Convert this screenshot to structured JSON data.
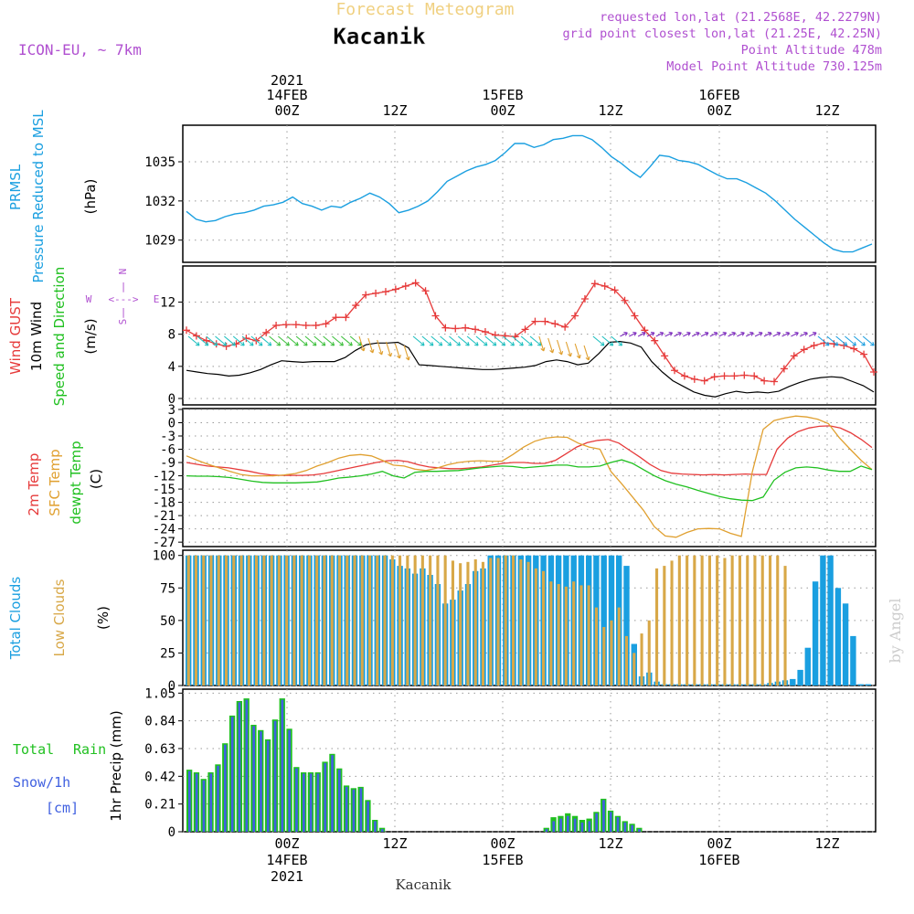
{
  "header": {
    "title": "Forecast Meteogram",
    "location": "Kacanik",
    "model": "ICON-EU, ~ 7km",
    "requested": "requested lon,lat (21.2568E, 42.2279N)",
    "gridpoint": "grid point closest lon,lat (21.25E, 42.25N)",
    "point_altitude": "Point Altitude 478m",
    "model_altitude": "Model Point Altitude 730.125m",
    "watermark": "by Angel",
    "footer_location": "Kacanik"
  },
  "time_axis": {
    "top_labels": [
      {
        "line1": "2021",
        "line2": "14FEB",
        "line3": "00Z"
      },
      {
        "line3": "12Z"
      },
      {
        "line2": "15FEB",
        "line3": "00Z"
      },
      {
        "line3": "12Z"
      },
      {
        "line2": "16FEB",
        "line3": "00Z"
      },
      {
        "line3": "12Z"
      }
    ],
    "bottom_labels": [
      {
        "line1": "00Z",
        "line2": "14FEB",
        "line3": "2021"
      },
      {
        "line1": "12Z"
      },
      {
        "line1": "00Z",
        "line2": "15FEB"
      },
      {
        "line1": "12Z"
      },
      {
        "line1": "00Z",
        "line2": "16FEB"
      },
      {
        "line1": "12Z"
      }
    ]
  },
  "panel_labels": {
    "pressure": {
      "l1": "PRMSL",
      "l2": "Pressure Reduced to MSL",
      "unit": "(hPa)"
    },
    "wind": {
      "l1": "Wind GUST",
      "l2": "10m Wind",
      "l3": "Speed and Direction",
      "unit": "(m/s)",
      "compass_n": "N",
      "compass_s": "S",
      "compass_w": "W",
      "compass_e": "E",
      "compass_h": "<--->",
      "compass_v": "|"
    },
    "temp": {
      "l1": "2m Temp",
      "l2": "SFC Temp",
      "l3": "dewpt Temp",
      "unit": "(C)"
    },
    "cloud": {
      "l1": "Total Clouds",
      "l2": "Low Clouds",
      "unit": "(%)"
    },
    "precip": {
      "l1": "Total",
      "l1b": "Rain",
      "l2": "Snow/1h",
      "l3": "[cm]",
      "unit": "1hr Precip (mm)"
    }
  },
  "colors": {
    "pressure": "#1a9fe0",
    "gust": "#e63a3a",
    "wind": "#000000",
    "temp2m": "#e63a3a",
    "sfc": "#e0a030",
    "dewpt": "#20c020",
    "total_cloud": "#1a9fe0",
    "low_cloud": "#d8a848",
    "rain": "#20c020",
    "snow": "#4060e0",
    "label_purple": "#b050d0"
  },
  "chart_data": [
    {
      "type": "line",
      "title": "PRMSL Pressure Reduced to MSL",
      "ylabel": "(hPa)",
      "ylim": [
        1027.3,
        1037.8
      ],
      "yticks": [
        1029,
        1032,
        1035
      ],
      "series": [
        {
          "name": "PRMSL",
          "values": [
            1031.2,
            1030.6,
            1030.4,
            1030.5,
            1030.8,
            1031.0,
            1031.1,
            1031.3,
            1031.6,
            1031.7,
            1031.9,
            1032.3,
            1031.8,
            1031.6,
            1031.3,
            1031.6,
            1031.5,
            1031.9,
            1032.2,
            1032.6,
            1032.3,
            1031.8,
            1031.1,
            1031.3,
            1031.6,
            1032.0,
            1032.7,
            1033.5,
            1033.9,
            1034.3,
            1034.6,
            1034.8,
            1035.1,
            1035.7,
            1036.4,
            1036.4,
            1036.1,
            1036.3,
            1036.7,
            1036.8,
            1037.0,
            1037.0,
            1036.7,
            1036.1,
            1035.4,
            1034.9,
            1034.3,
            1033.8,
            1034.6,
            1035.5,
            1035.4,
            1035.1,
            1035.0,
            1034.8,
            1034.4,
            1034.0,
            1033.7,
            1033.7,
            1033.4,
            1033.0,
            1032.6,
            1032.0,
            1031.3,
            1030.6,
            1030.0,
            1029.4,
            1028.8,
            1028.3,
            1028.1,
            1028.1,
            1028.4,
            1028.7
          ]
        }
      ]
    },
    {
      "type": "line",
      "title": "Wind GUST / 10m Wind Speed and Direction",
      "ylabel": "(m/s)",
      "ylim": [
        -0.8,
        16.5
      ],
      "yticks": [
        0,
        4,
        8,
        12
      ],
      "series": [
        {
          "name": "Wind GUST",
          "values": [
            8.5,
            7.8,
            7.2,
            6.8,
            6.5,
            6.8,
            7.5,
            7.2,
            8.2,
            9.1,
            9.2,
            9.2,
            9.1,
            9.1,
            9.3,
            10.1,
            10.1,
            11.6,
            12.9,
            13.1,
            13.3,
            13.6,
            14.0,
            14.4,
            13.4,
            10.3,
            8.8,
            8.7,
            8.8,
            8.6,
            8.3,
            7.9,
            7.8,
            7.7,
            8.6,
            9.6,
            9.6,
            9.3,
            8.9,
            10.3,
            12.4,
            14.3,
            14.0,
            13.5,
            12.2,
            10.3,
            8.5,
            7.2,
            5.3,
            3.5,
            2.8,
            2.4,
            2.2,
            2.7,
            2.8,
            2.8,
            2.9,
            2.8,
            2.2,
            2.1,
            3.7,
            5.3,
            6.1,
            6.6,
            6.9,
            6.8,
            6.6,
            6.2,
            5.5,
            3.3
          ]
        },
        {
          "name": "10m Wind",
          "values": [
            3.5,
            3.3,
            3.1,
            3.0,
            2.8,
            2.9,
            3.2,
            3.6,
            4.2,
            4.7,
            4.6,
            4.5,
            4.6,
            4.6,
            4.6,
            5.1,
            6.0,
            6.7,
            6.9,
            6.9,
            7.0,
            6.3,
            4.2,
            4.1,
            4.0,
            3.9,
            3.8,
            3.7,
            3.6,
            3.6,
            3.7,
            3.8,
            3.9,
            4.1,
            4.6,
            4.8,
            4.6,
            4.2,
            4.4,
            5.6,
            7.0,
            7.1,
            6.9,
            6.4,
            4.6,
            3.3,
            2.2,
            1.5,
            0.8,
            0.4,
            0.2,
            0.6,
            0.9,
            0.7,
            0.8,
            0.7,
            0.9,
            1.5,
            2.0,
            2.4,
            2.6,
            2.7,
            2.6,
            2.1,
            1.6,
            0.8
          ]
        }
      ],
      "wind_direction_arrows": [
        {
          "count": 9,
          "direction": "SE",
          "color": "#20c0c0"
        },
        {
          "count": 10,
          "direction": "SE",
          "color": "#40c040"
        },
        {
          "count": 6,
          "direction": "S",
          "color": "#e0a030"
        },
        {
          "count": 14,
          "direction": "SE",
          "color": "#20c0c0"
        },
        {
          "count": 6,
          "direction": "S",
          "color": "#e0a030"
        },
        {
          "count": 3,
          "direction": "SE",
          "color": "#20c0c0"
        },
        {
          "count": 22,
          "direction": "NE",
          "color": "#8030c0"
        },
        {
          "count": 6,
          "direction": "SE",
          "color": "#20a0e0"
        }
      ]
    },
    {
      "type": "line",
      "title": "2m Temp / SFC Temp / dewpt Temp",
      "ylabel": "(C)",
      "ylim": [
        -28,
        3.2
      ],
      "yticks": [
        3,
        0,
        -3,
        -6,
        -9,
        -12,
        -15,
        -18,
        -21,
        -24,
        -27
      ],
      "series": [
        {
          "name": "2m Temp",
          "values": [
            -9.0,
            -9.4,
            -9.8,
            -10.0,
            -10.2,
            -10.6,
            -11.0,
            -11.5,
            -11.8,
            -11.9,
            -11.9,
            -11.9,
            -11.8,
            -11.5,
            -11.0,
            -10.5,
            -10.0,
            -9.5,
            -9.0,
            -8.6,
            -8.5,
            -8.8,
            -9.5,
            -10.0,
            -10.2,
            -10.4,
            -10.4,
            -10.2,
            -10.0,
            -9.6,
            -9.2,
            -9.0,
            -9.0,
            -9.2,
            -9.2,
            -8.5,
            -7.0,
            -5.5,
            -4.5,
            -4.0,
            -3.8,
            -4.6,
            -6.2,
            -7.8,
            -9.5,
            -10.8,
            -11.4,
            -11.6,
            -11.7,
            -11.8,
            -11.7,
            -11.8,
            -11.7,
            -11.6,
            -11.7,
            -11.7,
            -6.0,
            -3.5,
            -2.0,
            -1.2,
            -0.8,
            -0.7,
            -1.2,
            -2.3,
            -3.8,
            -5.6
          ]
        },
        {
          "name": "SFC Temp",
          "values": [
            -7.5,
            -8.5,
            -9.4,
            -10.2,
            -11.0,
            -11.7,
            -12.0,
            -12.0,
            -12.0,
            -11.8,
            -11.5,
            -10.8,
            -9.8,
            -9.0,
            -8.0,
            -7.4,
            -7.2,
            -7.5,
            -8.5,
            -9.6,
            -9.8,
            -10.5,
            -10.8,
            -10.3,
            -9.5,
            -9.0,
            -8.7,
            -8.6,
            -8.7,
            -8.7,
            -7.2,
            -5.5,
            -4.2,
            -3.5,
            -3.2,
            -3.3,
            -4.6,
            -5.5,
            -6.0,
            -11.0,
            -13.8,
            -16.8,
            -19.8,
            -23.5,
            -25.6,
            -25.9,
            -24.8,
            -24.0,
            -23.9,
            -24.0,
            -25.0,
            -25.7,
            -11.2,
            -1.5,
            0.5,
            1.1,
            1.5,
            1.3,
            0.8,
            -0.2,
            -3.4,
            -6.0,
            -8.5,
            -10.6
          ]
        },
        {
          "name": "dewpt Temp",
          "values": [
            -12.0,
            -12.1,
            -12.1,
            -12.2,
            -12.4,
            -12.8,
            -13.2,
            -13.5,
            -13.6,
            -13.6,
            -13.6,
            -13.5,
            -13.4,
            -13.0,
            -12.5,
            -12.3,
            -12.0,
            -11.6,
            -11.0,
            -12.0,
            -12.5,
            -11.2,
            -11.0,
            -11.0,
            -10.9,
            -10.8,
            -10.5,
            -10.2,
            -10.0,
            -9.8,
            -9.9,
            -10.2,
            -10.0,
            -9.8,
            -9.6,
            -9.6,
            -10.0,
            -10.0,
            -9.8,
            -9.0,
            -8.4,
            -9.2,
            -10.6,
            -12.0,
            -13.1,
            -13.9,
            -14.5,
            -15.3,
            -16.0,
            -16.7,
            -17.2,
            -17.5,
            -17.6,
            -16.8,
            -13.0,
            -11.2,
            -10.2,
            -10.0,
            -10.2,
            -10.7,
            -11.0,
            -11.0,
            -9.8,
            -10.6
          ]
        }
      ]
    },
    {
      "type": "bar",
      "title": "Total Clouds / Low Clouds",
      "ylabel": "(%)",
      "ylim": [
        0,
        104
      ],
      "yticks": [
        0,
        25,
        50,
        75,
        100
      ],
      "series": [
        {
          "name": "Total Clouds",
          "values": [
            100,
            100,
            100,
            100,
            100,
            100,
            100,
            100,
            100,
            100,
            100,
            100,
            100,
            100,
            100,
            100,
            100,
            100,
            100,
            100,
            100,
            100,
            100,
            100,
            100,
            100,
            100,
            97,
            92,
            90,
            86,
            90,
            85,
            78,
            63,
            66,
            73,
            78,
            88,
            90,
            100,
            100,
            100,
            100,
            100,
            100,
            100,
            100,
            100,
            100,
            100,
            100,
            100,
            100,
            100,
            100,
            100,
            100,
            92,
            32,
            7,
            10,
            3,
            1,
            1,
            1,
            1,
            1,
            1,
            1,
            1,
            1,
            1,
            1,
            1,
            1,
            1,
            2,
            3,
            4,
            5,
            12,
            29,
            80,
            100,
            100,
            75,
            63,
            38,
            1,
            1
          ]
        },
        {
          "name": "Low Clouds",
          "values": [
            100,
            100,
            100,
            100,
            100,
            100,
            100,
            100,
            100,
            100,
            100,
            100,
            100,
            100,
            100,
            100,
            100,
            100,
            100,
            100,
            100,
            100,
            100,
            100,
            100,
            100,
            100,
            100,
            100,
            100,
            100,
            100,
            100,
            100,
            100,
            96,
            94,
            95,
            97,
            95,
            98,
            98,
            100,
            100,
            97,
            95,
            90,
            88,
            80,
            78,
            76,
            80,
            77,
            77,
            60,
            45,
            50,
            60,
            38,
            25,
            40,
            50,
            90,
            92,
            96,
            100,
            100,
            100,
            100,
            100,
            100,
            98,
            100,
            100,
            100,
            100,
            100,
            100,
            100,
            92
          ]
        }
      ]
    },
    {
      "type": "bar",
      "title": "1hr Precip",
      "ylabel": "1hr Precip (mm)",
      "ylim": [
        0,
        1.08
      ],
      "yticks": [
        0,
        0.21,
        0.42,
        0.63,
        0.84,
        1.05
      ],
      "series": [
        {
          "name": "Snow/1h",
          "values": [
            0.46,
            0.44,
            0.39,
            0.44,
            0.5,
            0.66,
            0.87,
            0.98,
            1.0,
            0.8,
            0.76,
            0.69,
            0.84,
            1.0,
            0.77,
            0.48,
            0.44,
            0.44,
            0.44,
            0.52,
            0.58,
            0.47,
            0.34,
            0.32,
            0.33,
            0.23,
            0.08,
            0.02,
            0,
            0,
            0,
            0,
            0,
            0,
            0,
            0,
            0,
            0,
            0,
            0,
            0,
            0,
            0,
            0,
            0,
            0,
            0,
            0,
            0,
            0,
            0.02,
            0.08,
            0.1,
            0.12,
            0.1,
            0.07,
            0.08,
            0.14,
            0.24,
            0.15,
            0.11,
            0.07,
            0.05,
            0.02
          ]
        },
        {
          "name": "Total Rain",
          "values": [
            0.47,
            0.45,
            0.4,
            0.45,
            0.51,
            0.67,
            0.88,
            0.99,
            1.01,
            0.81,
            0.77,
            0.7,
            0.85,
            1.01,
            0.78,
            0.49,
            0.45,
            0.45,
            0.45,
            0.53,
            0.59,
            0.48,
            0.35,
            0.33,
            0.34,
            0.24,
            0.09,
            0.03,
            0,
            0,
            0,
            0,
            0,
            0,
            0,
            0,
            0,
            0,
            0,
            0,
            0,
            0,
            0,
            0,
            0,
            0,
            0,
            0,
            0,
            0,
            0.03,
            0.11,
            0.12,
            0.14,
            0.12,
            0.09,
            0.1,
            0.15,
            0.25,
            0.16,
            0.12,
            0.08,
            0.06,
            0.03
          ]
        }
      ]
    }
  ]
}
